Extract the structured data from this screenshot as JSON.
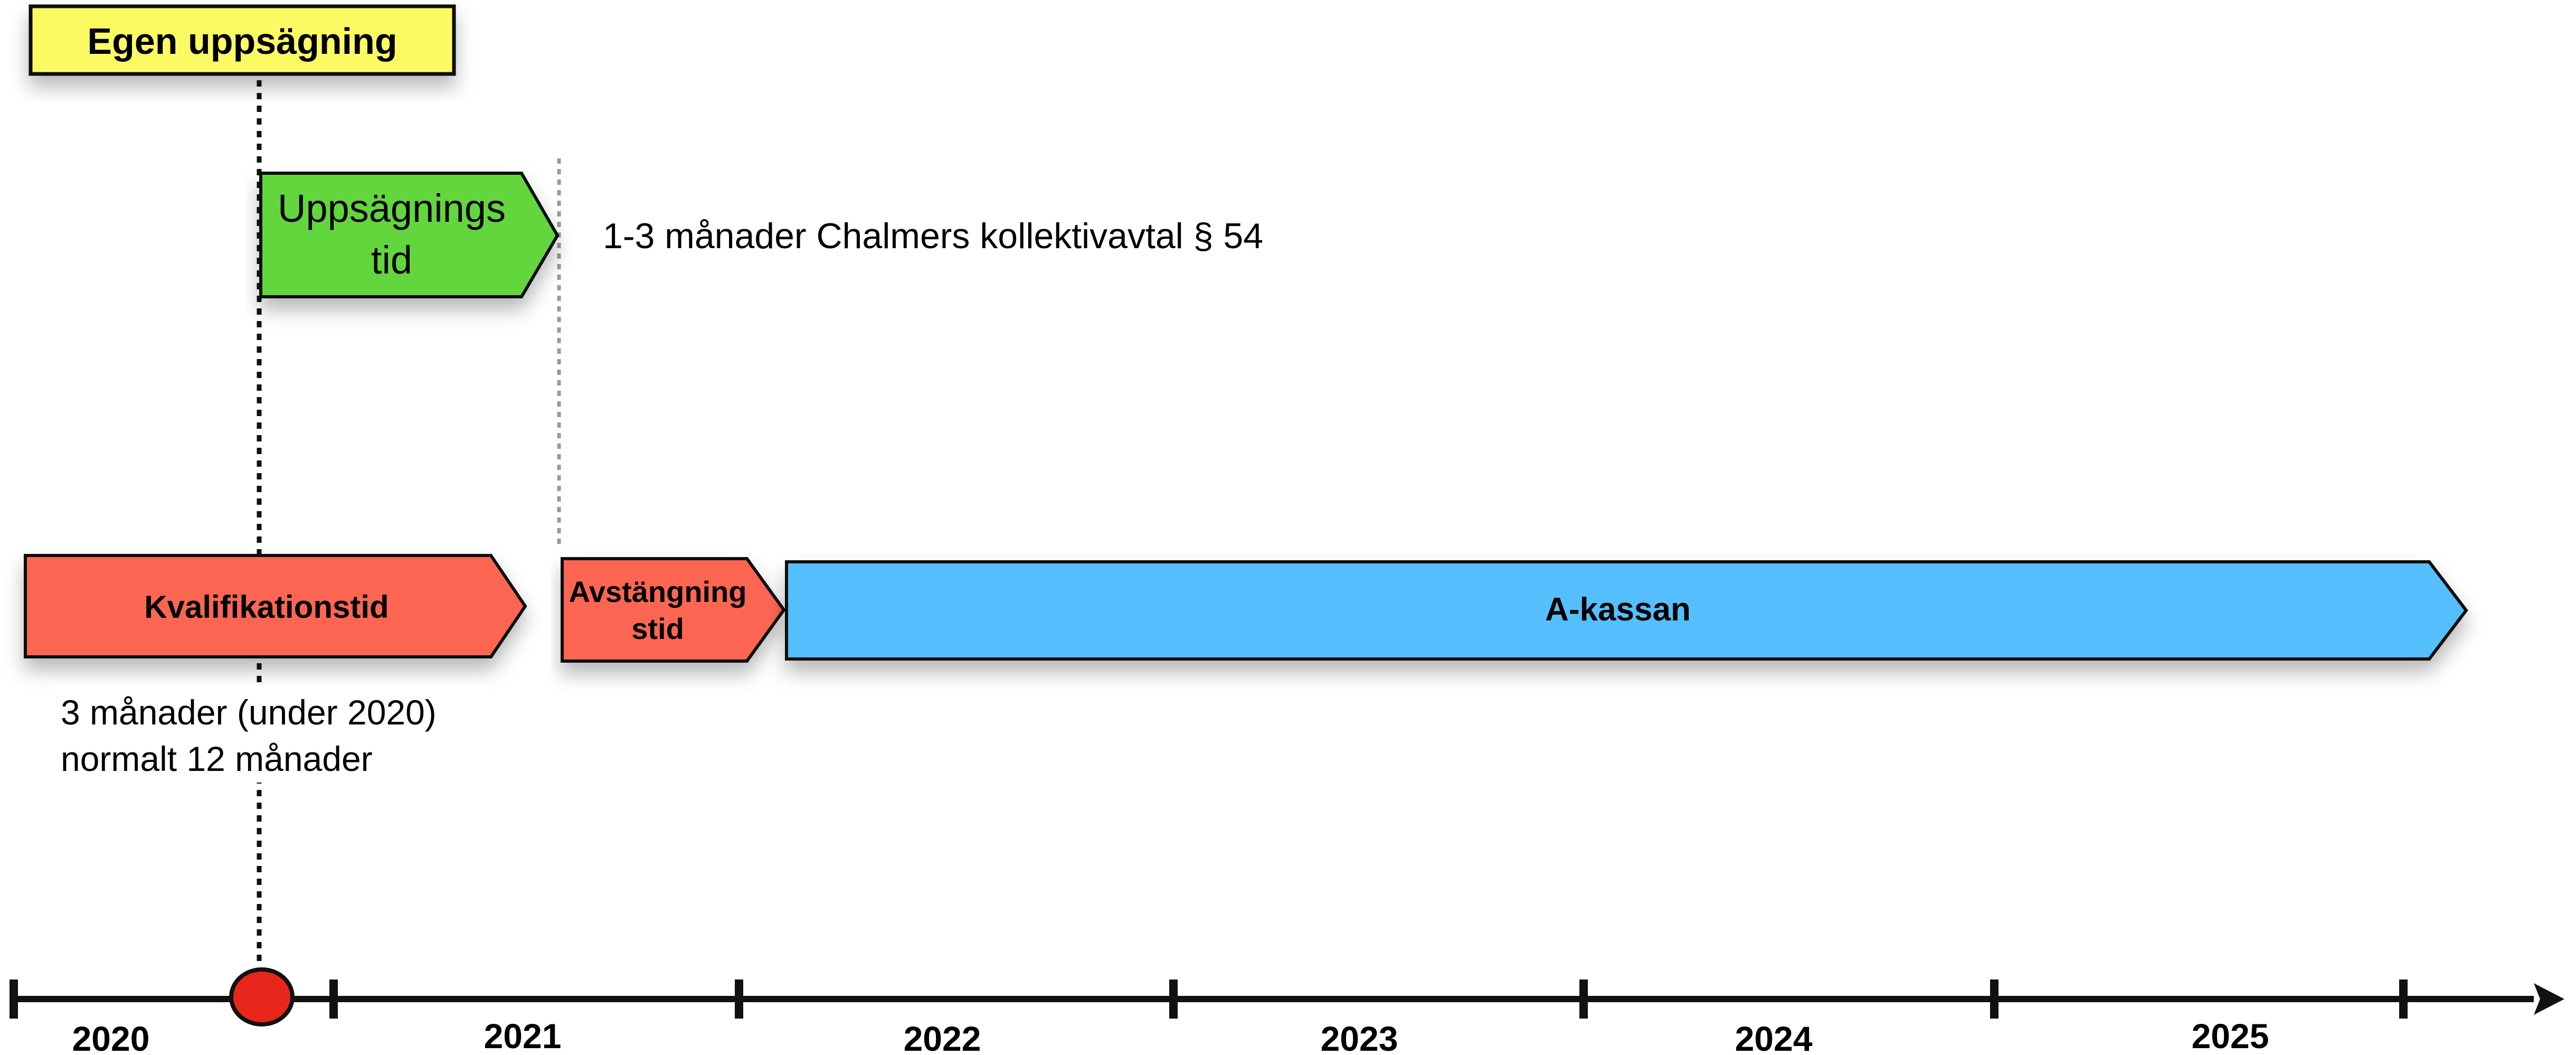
{
  "event_label": "Egen uppsägning",
  "notice": {
    "line1": "Uppsägnings",
    "line2": "tid",
    "note": "1-3 månader Chalmers kollektivavtal § 54"
  },
  "qualification": {
    "label": "Kvalifikationstid",
    "note_line1": "3 månader (under 2020)",
    "note_line2": "normalt 12 månader"
  },
  "suspension": {
    "line1": "Avstängning",
    "line2": "stid"
  },
  "akassa": {
    "label": "A-kassan"
  },
  "timeline": {
    "years": [
      "2020",
      "2021",
      "2022",
      "2023",
      "2024",
      "2025"
    ]
  },
  "colors": {
    "event_fill": "#fbfa63",
    "notice_fill": "#63d63c",
    "qualification_fill": "#fd6552",
    "suspension_fill": "#fd6552",
    "akassa_fill": "#55bffd",
    "event_dot": "#e9261c"
  }
}
